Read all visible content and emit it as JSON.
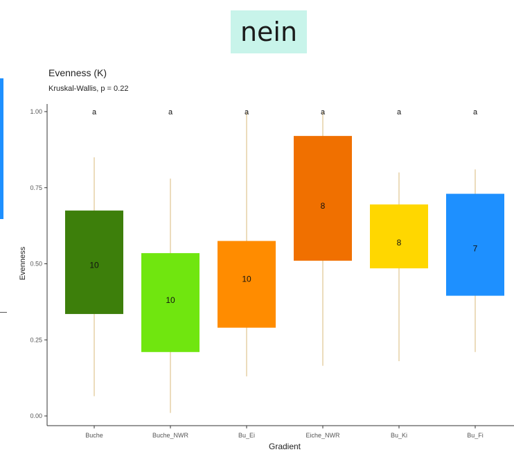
{
  "banner": {
    "text": "nein"
  },
  "chart_data": {
    "type": "box",
    "title": "Evenness (K)",
    "subtitle": "Kruskal-Wallis, p = 0.22",
    "xlabel": "Gradient",
    "ylabel": "Evenness",
    "ylim": [
      0,
      1
    ],
    "yticks": [
      "0.00",
      "0.25",
      "0.50",
      "0.75",
      "1.00"
    ],
    "ytick_values": [
      0,
      0.25,
      0.5,
      0.75,
      1.0
    ],
    "categories": [
      "Buche",
      "Buche_NWR",
      "Bu_Ei",
      "Eiche_NWR",
      "Bu_Ki",
      "Bu_Fi"
    ],
    "boxes": [
      {
        "category": "Buche",
        "q1": 0.335,
        "median": 0.495,
        "q3": 0.675,
        "min": 0.065,
        "max": 0.85,
        "n": "10",
        "letter": "a",
        "color": "#3d7f0b"
      },
      {
        "category": "Buche_NWR",
        "q1": 0.21,
        "median": 0.38,
        "q3": 0.535,
        "min": 0.01,
        "max": 0.78,
        "n": "10",
        "letter": "a",
        "color": "#70e60f"
      },
      {
        "category": "Bu_Ei",
        "q1": 0.29,
        "median": 0.45,
        "q3": 0.575,
        "min": 0.13,
        "max": 1.0,
        "n": "10",
        "letter": "a",
        "color": "#ff8c00"
      },
      {
        "category": "Eiche_NWR",
        "q1": 0.51,
        "median": 0.69,
        "q3": 0.92,
        "min": 0.165,
        "max": 1.0,
        "n": "8",
        "letter": "a",
        "color": "#f07000"
      },
      {
        "category": "Bu_Ki",
        "q1": 0.485,
        "median": 0.57,
        "q3": 0.695,
        "min": 0.18,
        "max": 0.8,
        "n": "8",
        "letter": "a",
        "color": "#ffd700"
      },
      {
        "category": "Bu_Fi",
        "q1": 0.395,
        "median": 0.55,
        "q3": 0.73,
        "min": 0.21,
        "max": 0.81,
        "n": "7",
        "letter": "a",
        "color": "#1e90ff"
      }
    ],
    "grid": false,
    "legend": "none"
  }
}
